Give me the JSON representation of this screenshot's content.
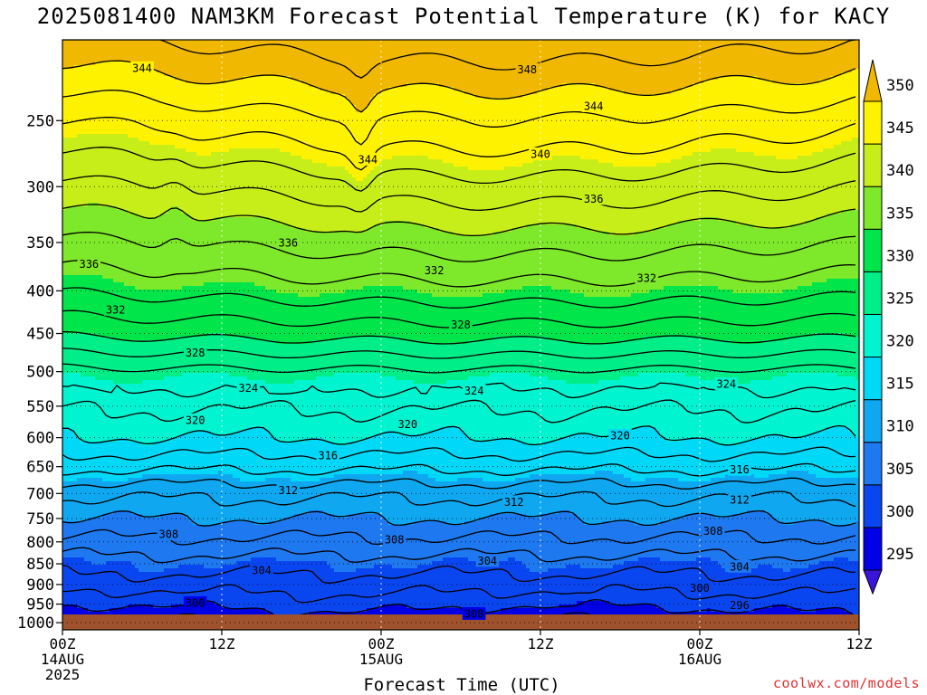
{
  "title": "2025081400 NAM3KM Forecast Potential Temperature (K) for KACY",
  "x_axis_title": "Forecast Time (UTC)",
  "credit": "coolwx.com/models",
  "chart_data": {
    "type": "contour",
    "variable": "Potential Temperature (K)",
    "y_axis": {
      "scale": "log-pressure",
      "ticks": [
        250,
        300,
        350,
        400,
        450,
        500,
        550,
        600,
        650,
        700,
        750,
        800,
        850,
        900,
        950,
        1000
      ],
      "range": [
        200,
        1020
      ],
      "inverted": true
    },
    "x_axis": {
      "range_hours": [
        0,
        60
      ],
      "ticks": [
        {
          "hour": 0,
          "lines": [
            "00Z",
            "14AUG",
            "2025"
          ]
        },
        {
          "hour": 12,
          "lines": [
            "12Z"
          ]
        },
        {
          "hour": 24,
          "lines": [
            "00Z",
            "15AUG"
          ]
        },
        {
          "hour": 36,
          "lines": [
            "12Z"
          ]
        },
        {
          "hour": 48,
          "lines": [
            "00Z",
            "16AUG"
          ]
        },
        {
          "hour": 60,
          "lines": [
            "12Z"
          ]
        }
      ]
    },
    "grid": true,
    "colorbar": {
      "levels": [
        295,
        300,
        305,
        310,
        315,
        320,
        325,
        330,
        335,
        340,
        345,
        350
      ],
      "labels": [
        "295",
        "300",
        "305",
        "310",
        "315",
        "320",
        "325",
        "330",
        "335",
        "340",
        "345",
        "350"
      ],
      "colors": [
        "#3a14d8",
        "#0000e6",
        "#0a46f0",
        "#1e78f0",
        "#0fa8f0",
        "#00d8f8",
        "#00f4d0",
        "#00ee88",
        "#00e64a",
        "#7ee82a",
        "#c8ee1a",
        "#fff200",
        "#f0b800"
      ],
      "extend": "both",
      "placement": "right"
    },
    "theta_profile": {
      "pressure": [
        200,
        250,
        300,
        350,
        400,
        450,
        500,
        550,
        600,
        650,
        700,
        750,
        800,
        850,
        900,
        950,
        1000,
        1020
      ],
      "theta": [
        352,
        346.5,
        342,
        338,
        334.5,
        330.5,
        325.5,
        322.3,
        320,
        316.5,
        312.5,
        310,
        307.5,
        305,
        303,
        301,
        298.5,
        298
      ]
    },
    "contour_labels": [
      {
        "value": "344",
        "hour": 6,
        "pressure": 216
      },
      {
        "value": "348",
        "hour": 35,
        "pressure": 217
      },
      {
        "value": "344",
        "hour": 40,
        "pressure": 240
      },
      {
        "value": "344",
        "hour": 23,
        "pressure": 278
      },
      {
        "value": "340",
        "hour": 36,
        "pressure": 274
      },
      {
        "value": "336",
        "hour": 40,
        "pressure": 310
      },
      {
        "value": "336",
        "hour": 17,
        "pressure": 350
      },
      {
        "value": "336",
        "hour": 2,
        "pressure": 371
      },
      {
        "value": "332",
        "hour": 28,
        "pressure": 378
      },
      {
        "value": "332",
        "hour": 44,
        "pressure": 386
      },
      {
        "value": "332",
        "hour": 4,
        "pressure": 421
      },
      {
        "value": "328",
        "hour": 30,
        "pressure": 439
      },
      {
        "value": "328",
        "hour": 10,
        "pressure": 474
      },
      {
        "value": "324",
        "hour": 14,
        "pressure": 523
      },
      {
        "value": "324",
        "hour": 31,
        "pressure": 527
      },
      {
        "value": "324",
        "hour": 50,
        "pressure": 517
      },
      {
        "value": "320",
        "hour": 10,
        "pressure": 571
      },
      {
        "value": "320",
        "hour": 26,
        "pressure": 578
      },
      {
        "value": "320",
        "hour": 42,
        "pressure": 596
      },
      {
        "value": "316",
        "hour": 20,
        "pressure": 630
      },
      {
        "value": "316",
        "hour": 51,
        "pressure": 655
      },
      {
        "value": "312",
        "hour": 17,
        "pressure": 693
      },
      {
        "value": "312",
        "hour": 34,
        "pressure": 716
      },
      {
        "value": "312",
        "hour": 51,
        "pressure": 712
      },
      {
        "value": "308",
        "hour": 8,
        "pressure": 783
      },
      {
        "value": "308",
        "hour": 25,
        "pressure": 794
      },
      {
        "value": "308",
        "hour": 49,
        "pressure": 776
      },
      {
        "value": "304",
        "hour": 15,
        "pressure": 865
      },
      {
        "value": "304",
        "hour": 32,
        "pressure": 842
      },
      {
        "value": "304",
        "hour": 51,
        "pressure": 856
      },
      {
        "value": "300",
        "hour": 10,
        "pressure": 946
      },
      {
        "value": "300",
        "hour": 31,
        "pressure": 975
      },
      {
        "value": "300",
        "hour": 48,
        "pressure": 908
      },
      {
        "value": "296",
        "hour": 51,
        "pressure": 952
      }
    ]
  }
}
